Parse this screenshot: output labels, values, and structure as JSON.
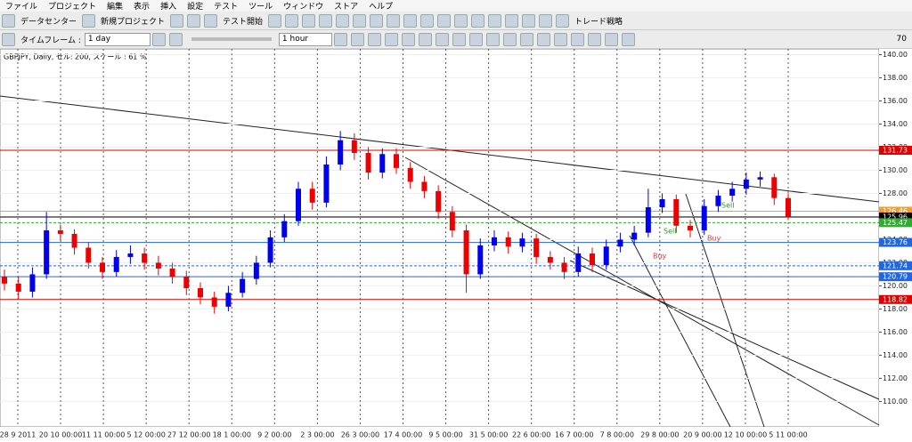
{
  "menu": [
    "ファイル",
    "プロジェクト",
    "編集",
    "表示",
    "挿入",
    "設定",
    "テスト",
    "ツール",
    "ウィンドウ",
    "ストア",
    "ヘルプ"
  ],
  "toolbar": {
    "data_center": "データセンター",
    "new_project": "新規プロジェクト",
    "test_start": "テスト開始",
    "strategy": "トレード戦略",
    "timeframe_label": "タイムフレーム :",
    "timeframe": "1 day",
    "period": "1 hour",
    "mail_count": 70
  },
  "chart_data": {
    "type": "candlestick",
    "title": "GBPJPY, Daily, セル: 200, スケール : 61 %",
    "categories": [
      "28 9 2011",
      "20 10 00:00",
      "11 11 00:00",
      "5 12 00:00",
      "27 12 00:00",
      "18 1 00:00",
      "9 2 00:00",
      "2 3 00:00",
      "26 3 00:00",
      "17 4 00:00",
      "9 5 00:00",
      "31 5 00:00",
      "22 6 00:00",
      "16 7 00:00",
      "7 8 00:00",
      "29 8 00:00",
      "20 9 00:00",
      "12 10 00:00",
      "5 11 00:00"
    ],
    "open": [
      120.8,
      120.2,
      119.5,
      121.0,
      124.8,
      124.5,
      123.3,
      122.0,
      121.2,
      122.5,
      122.8,
      122.0,
      121.5,
      120.8,
      119.8,
      119.0,
      118.2,
      119.4,
      120.6,
      122.0,
      124.2,
      125.6,
      128.4,
      127.2,
      130.5,
      132.6,
      131.5,
      129.8,
      131.4,
      130.2,
      129.0,
      128.2,
      126.4,
      124.8,
      121.0,
      123.5,
      124.2,
      123.4,
      124.1,
      122.5,
      122.0,
      121.2,
      122.8,
      121.8,
      123.4,
      124.0,
      124.6,
      126.8,
      127.5,
      125.2,
      124.8,
      126.9,
      127.8,
      128.4,
      129.2,
      129.4,
      127.6
    ],
    "high": [
      121.4,
      120.8,
      121.6,
      126.4,
      125.3,
      124.9,
      123.8,
      122.5,
      123.1,
      123.5,
      123.3,
      122.6,
      122.0,
      121.3,
      120.3,
      119.5,
      120.0,
      121.2,
      122.6,
      124.8,
      126.2,
      129.0,
      129.0,
      131.2,
      133.4,
      133.2,
      132.0,
      131.9,
      131.9,
      130.7,
      129.5,
      128.7,
      126.9,
      125.3,
      124.1,
      124.8,
      124.7,
      124.6,
      124.5,
      123.0,
      122.5,
      123.4,
      123.3,
      124.0,
      124.6,
      125.2,
      128.4,
      128.0,
      127.9,
      125.7,
      127.5,
      128.3,
      129.0,
      129.8,
      129.9,
      129.7,
      128.0
    ],
    "low": [
      119.6,
      118.9,
      119.0,
      120.6,
      123.9,
      122.7,
      121.5,
      120.6,
      120.8,
      121.9,
      121.4,
      120.9,
      120.2,
      119.2,
      118.4,
      117.6,
      117.8,
      119.0,
      120.1,
      121.6,
      123.8,
      125.2,
      126.6,
      126.8,
      130.0,
      130.9,
      129.2,
      129.3,
      129.7,
      128.4,
      127.6,
      125.8,
      124.2,
      119.4,
      120.6,
      123.0,
      122.8,
      122.9,
      121.9,
      121.4,
      120.6,
      120.8,
      121.2,
      121.4,
      122.9,
      123.5,
      124.2,
      126.3,
      124.6,
      124.2,
      124.4,
      126.4,
      127.3,
      127.9,
      128.6,
      127.0,
      125.7
    ],
    "close": [
      120.2,
      119.5,
      121.0,
      124.8,
      124.5,
      123.3,
      122.0,
      121.2,
      122.5,
      122.8,
      122.0,
      121.5,
      120.8,
      119.8,
      119.0,
      118.2,
      119.4,
      120.6,
      122.0,
      124.2,
      125.6,
      128.4,
      127.2,
      130.5,
      132.6,
      131.5,
      129.8,
      131.4,
      130.2,
      129.0,
      128.2,
      126.4,
      124.8,
      121.0,
      123.5,
      124.2,
      123.4,
      124.1,
      122.5,
      122.0,
      121.2,
      122.8,
      121.8,
      123.4,
      124.0,
      124.6,
      126.8,
      127.5,
      125.2,
      124.8,
      126.9,
      127.8,
      128.4,
      129.2,
      129.4,
      127.6,
      125.96
    ],
    "up_color": "#0000ee",
    "down_color": "#ee0000",
    "ylim": [
      107.8,
      140.5
    ],
    "yticks": [
      {
        "value": 110,
        "label": "110.00"
      },
      {
        "value": 112,
        "label": "112.00"
      },
      {
        "value": 114,
        "label": "114.00"
      },
      {
        "value": 116,
        "label": "116.00"
      },
      {
        "value": 118,
        "label": "118.00"
      },
      {
        "value": 120,
        "label": "120.00"
      },
      {
        "value": 122,
        "label": "122.00"
      },
      {
        "value": 124,
        "label": "124.00"
      },
      {
        "value": 126,
        "label": "126.00"
      },
      {
        "value": 128,
        "label": "128.00"
      },
      {
        "value": 130,
        "label": "130.00"
      },
      {
        "value": 132,
        "label": "132.00"
      },
      {
        "value": 134,
        "label": "134.00"
      },
      {
        "value": 136,
        "label": "136.00"
      },
      {
        "value": 138,
        "label": "138.00"
      },
      {
        "value": 140,
        "label": "140.00"
      }
    ],
    "levels": [
      {
        "value": 131.73,
        "color": "#dd0000",
        "dashed": false
      },
      {
        "value": 126.46,
        "color": "#f0a030",
        "dashed": false
      },
      {
        "value": 125.96,
        "color": "#000000",
        "dashed": false
      },
      {
        "value": 125.47,
        "color": "#33aa33",
        "dashed": true
      },
      {
        "value": 123.76,
        "color": "#2266dd",
        "dashed": false
      },
      {
        "value": 121.74,
        "color": "#2266dd",
        "dashed": true
      },
      {
        "value": 120.79,
        "color": "#2266dd",
        "dashed": false
      },
      {
        "value": 118.82,
        "color": "#dd0000",
        "dashed": false
      }
    ],
    "markers": [
      "Sell",
      "Buy",
      "Sell",
      "Buy"
    ],
    "grid": true
  }
}
